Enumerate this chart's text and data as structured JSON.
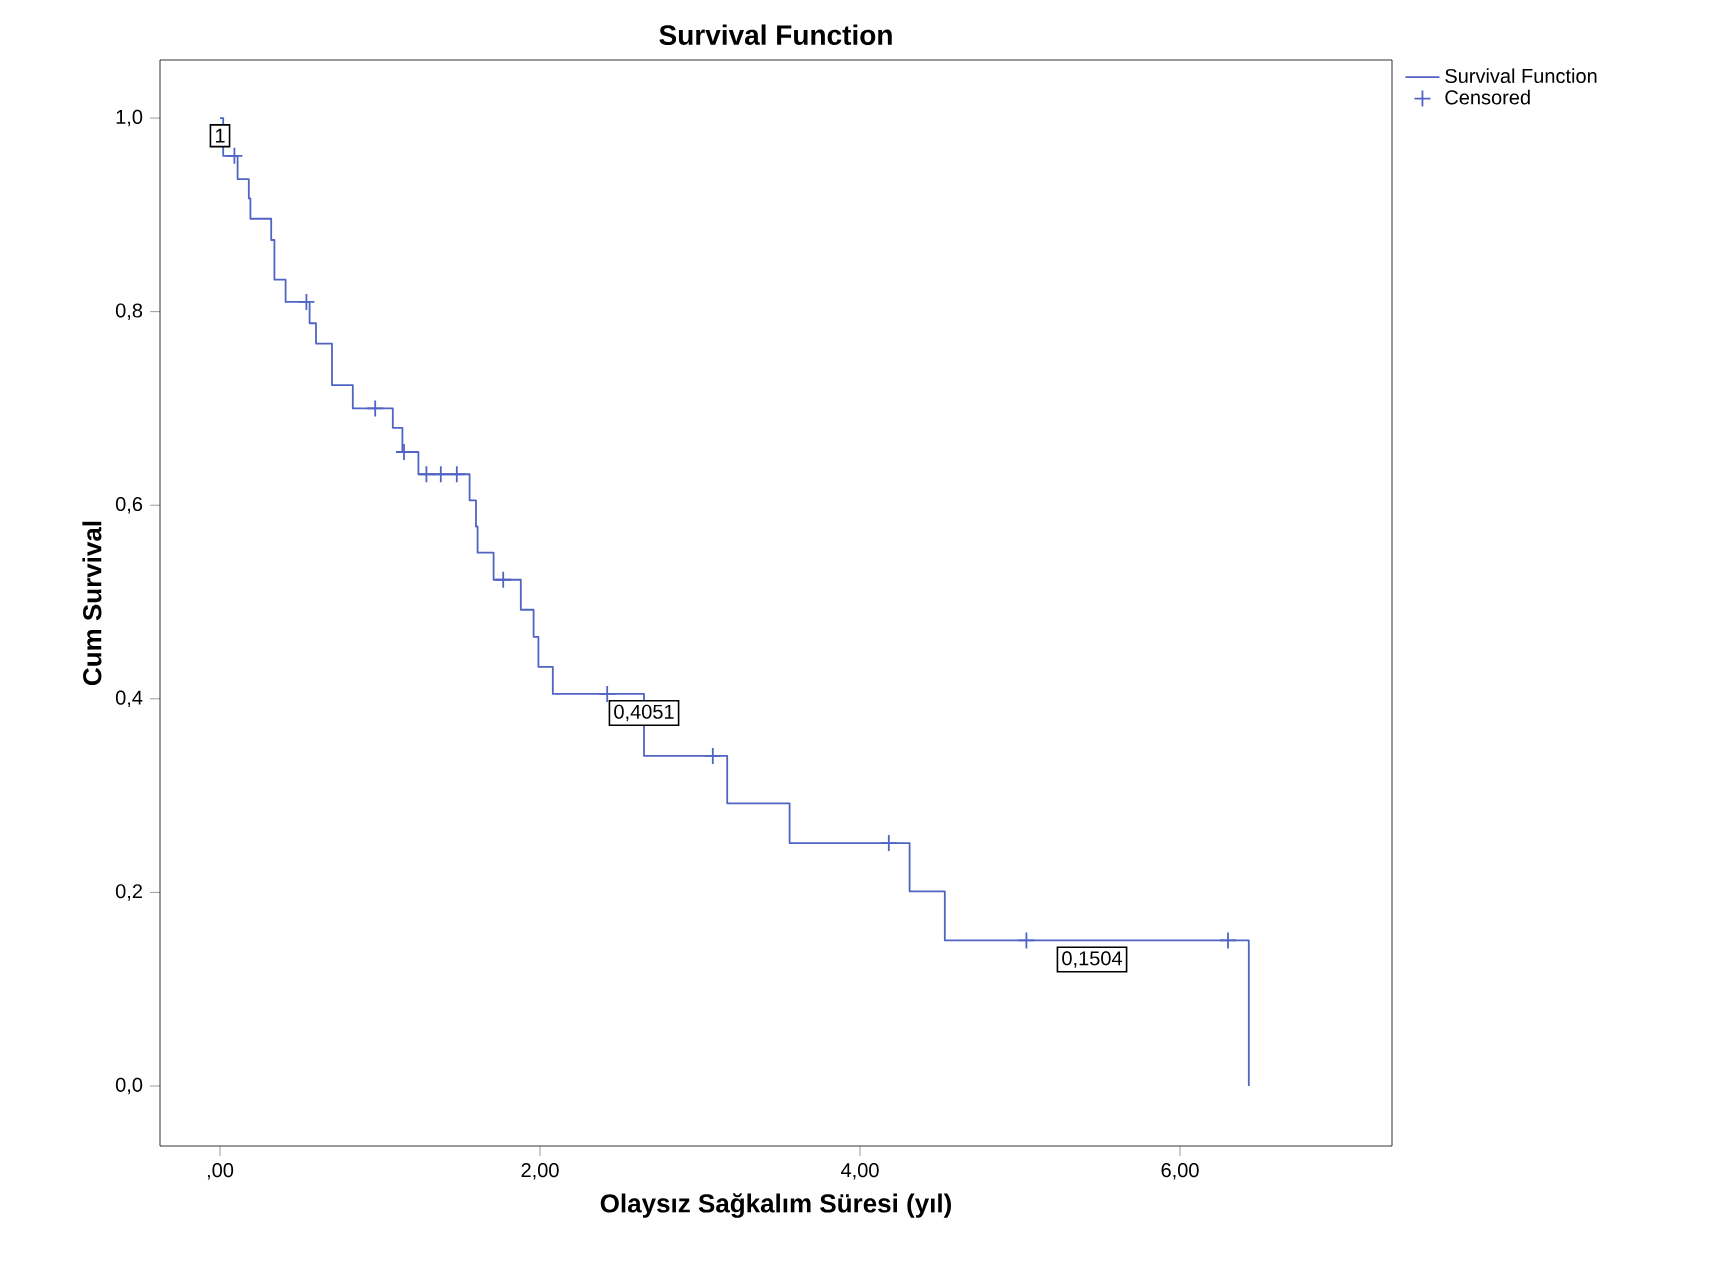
{
  "chart_data": {
    "type": "step",
    "title": "Survival Function",
    "xlabel": "Olaysız Sağkalım Süresi (yıl)",
    "ylabel": "Cum Survival",
    "xlim": [
      -0.375,
      7.325
    ],
    "ylim": [
      -0.062,
      1.06
    ],
    "xticks": [
      {
        "value": 0,
        "label": ",00"
      },
      {
        "value": 2,
        "label": "2,00"
      },
      {
        "value": 4,
        "label": "4,00"
      },
      {
        "value": 6,
        "label": "6,00"
      }
    ],
    "yticks": [
      {
        "value": 0,
        "label": "0,0"
      },
      {
        "value": 0.2,
        "label": "0,2"
      },
      {
        "value": 0.4,
        "label": "0,4"
      },
      {
        "value": 0.6,
        "label": "0,6"
      },
      {
        "value": 0.8,
        "label": "0,8"
      },
      {
        "value": 1.0,
        "label": "1,0"
      }
    ],
    "grid": false,
    "legend": "top right",
    "series": [
      {
        "name": "Survival Function",
        "color": "#5065c3",
        "marker": "none",
        "x": [
          0,
          0.02,
          0.11,
          0.18,
          0.19,
          0.32,
          0.34,
          0.41,
          0.56,
          0.6,
          0.7,
          0.83,
          1.08,
          1.14,
          1.24,
          1.56,
          1.6,
          1.61,
          1.71,
          1.88,
          1.96,
          1.99,
          2.08,
          2.65,
          3.17,
          3.56,
          4.31,
          4.53,
          6.43
        ],
        "values": [
          1.0,
          0.961,
          0.937,
          0.917,
          0.896,
          0.874,
          0.833,
          0.81,
          0.788,
          0.767,
          0.724,
          0.7,
          0.68,
          0.655,
          0.632,
          0.605,
          0.578,
          0.551,
          0.523,
          0.492,
          0.464,
          0.433,
          0.4051,
          0.341,
          0.292,
          0.251,
          0.201,
          0.1504,
          0.0
        ]
      },
      {
        "name": "Censored",
        "type": "scatter",
        "color": "#5065c3",
        "marker": "cross",
        "x": [
          0.09,
          0.54,
          0.97,
          1.15,
          1.29,
          1.38,
          1.48,
          1.77,
          2.42,
          3.08,
          4.18,
          5.04,
          6.3
        ],
        "values": [
          0.961,
          0.81,
          0.7,
          0.655,
          0.632,
          0.632,
          0.632,
          0.523,
          0.4051,
          0.341,
          0.251,
          0.1504,
          0.1504
        ]
      }
    ],
    "annotations": [
      {
        "text": "1",
        "x": 0,
        "y": 1.0
      },
      {
        "text": "0,4051",
        "x": 2.65,
        "y": 0.4051
      },
      {
        "text": "0,1504",
        "x": 5.45,
        "y": 0.1504
      }
    ]
  }
}
